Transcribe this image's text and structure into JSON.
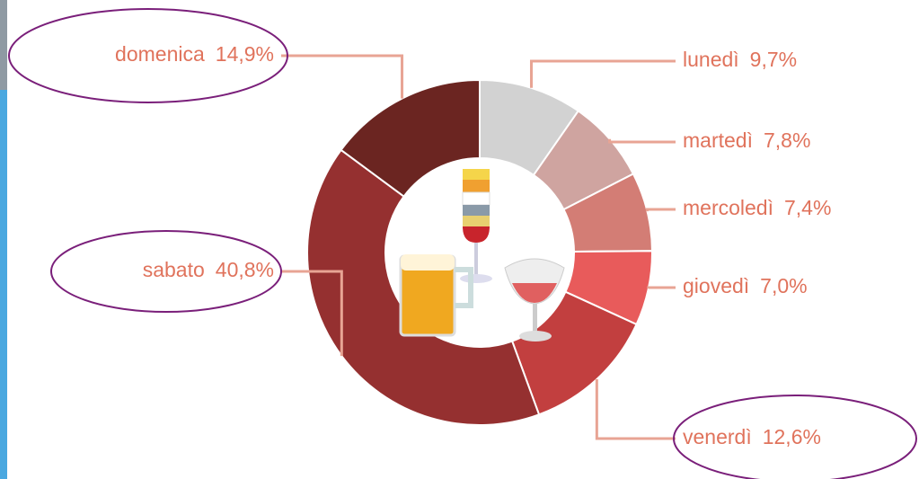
{
  "chart_data": {
    "type": "donut",
    "categories": [
      "lunedì",
      "martedì",
      "mercoledì",
      "giovedì",
      "venerdì",
      "sabato",
      "domenica"
    ],
    "values": [
      9.7,
      7.8,
      7.4,
      7.0,
      12.6,
      40.8,
      14.9
    ],
    "value_labels": [
      "9,7%",
      "7,8%",
      "7,4%",
      "7,0%",
      "12,6%",
      "40,8%",
      "14,9%"
    ],
    "colors": [
      "#d2d2d2",
      "#cfa4a0",
      "#d37d75",
      "#e85b5b",
      "#c23f3f",
      "#953030",
      "#6b2521"
    ]
  }
}
